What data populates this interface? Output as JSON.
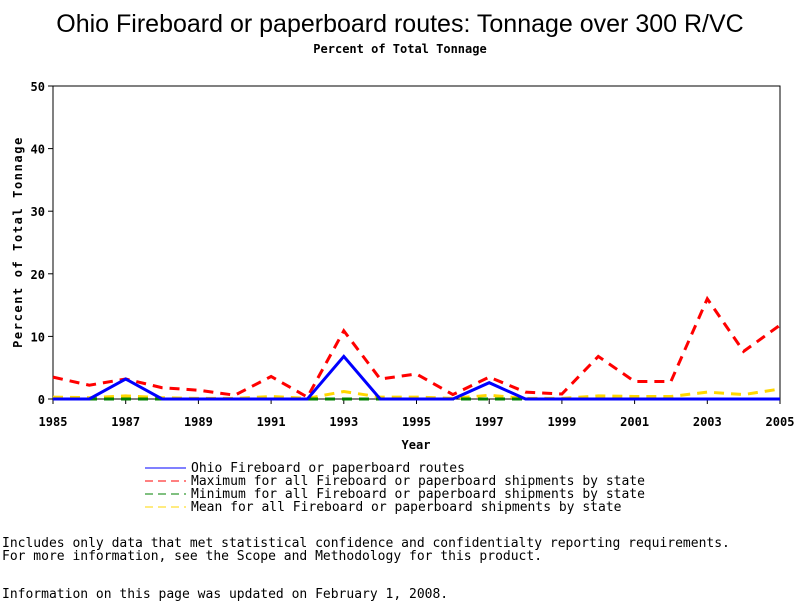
{
  "chart_data": {
    "type": "line",
    "title": "Ohio Fireboard or paperboard routes: Tonnage over 300 R/VC",
    "subtitle": "Percent of Total Tonnage",
    "xlabel": "Year",
    "ylabel": "Percent of Total Tonnage",
    "xlim": [
      1985,
      2005
    ],
    "ylim": [
      0,
      50
    ],
    "x_ticks": [
      "1985",
      "1987",
      "1989",
      "1991",
      "1993",
      "1995",
      "1997",
      "1999",
      "2001",
      "2003",
      "2005"
    ],
    "y_ticks": [
      "0",
      "10",
      "20",
      "30",
      "40",
      "50"
    ],
    "grid": false,
    "legend_position": "bottom",
    "x": [
      1985,
      1986,
      1987,
      1988,
      1989,
      1990,
      1991,
      1992,
      1993,
      1994,
      1995,
      1996,
      1997,
      1998,
      1999,
      2000,
      2001,
      2002,
      2003,
      2004,
      2005
    ],
    "series": [
      {
        "name": "Ohio Fireboard or paperboard routes",
        "color": "#0000ff",
        "style": "solid",
        "values": [
          0,
          0,
          3.2,
          0,
          0,
          0,
          0,
          0,
          6.8,
          0,
          0,
          0,
          2.6,
          0,
          0,
          0,
          0,
          0,
          0,
          0,
          0
        ]
      },
      {
        "name": "Maximum for all Fireboard or paperboard shipments by state",
        "color": "#ff0000",
        "style": "dashed",
        "values": [
          3.5,
          2.2,
          3.2,
          1.8,
          1.4,
          0.6,
          3.6,
          0.3,
          10.9,
          3.2,
          4.0,
          0.7,
          3.5,
          1.1,
          0.8,
          6.8,
          2.8,
          2.8,
          16.0,
          7.6,
          11.8
        ]
      },
      {
        "name": "Minimum for all Fireboard or paperboard shipments by state",
        "color": "#008000",
        "style": "dashed",
        "values": [
          0,
          0,
          0,
          0,
          0,
          0,
          0,
          0,
          0,
          0,
          0,
          0,
          0,
          0,
          0,
          0,
          0,
          0,
          0,
          0,
          0
        ]
      },
      {
        "name": "Mean for all Fireboard or paperboard shipments by state",
        "color": "#ffd700",
        "style": "dashed",
        "values": [
          0.3,
          0.2,
          0.5,
          0.2,
          0.1,
          0.1,
          0.4,
          0.1,
          1.2,
          0.3,
          0.3,
          0.1,
          0.6,
          0.1,
          0.1,
          0.5,
          0.4,
          0.4,
          1.1,
          0.7,
          1.6
        ]
      }
    ]
  },
  "notes": {
    "line1": "Includes only data that met statistical confidence and confidentialty reporting requirements.",
    "line2": "For more information, see the Scope and Methodology for this product.",
    "updated": "Information on this page was updated on February 1, 2008."
  }
}
